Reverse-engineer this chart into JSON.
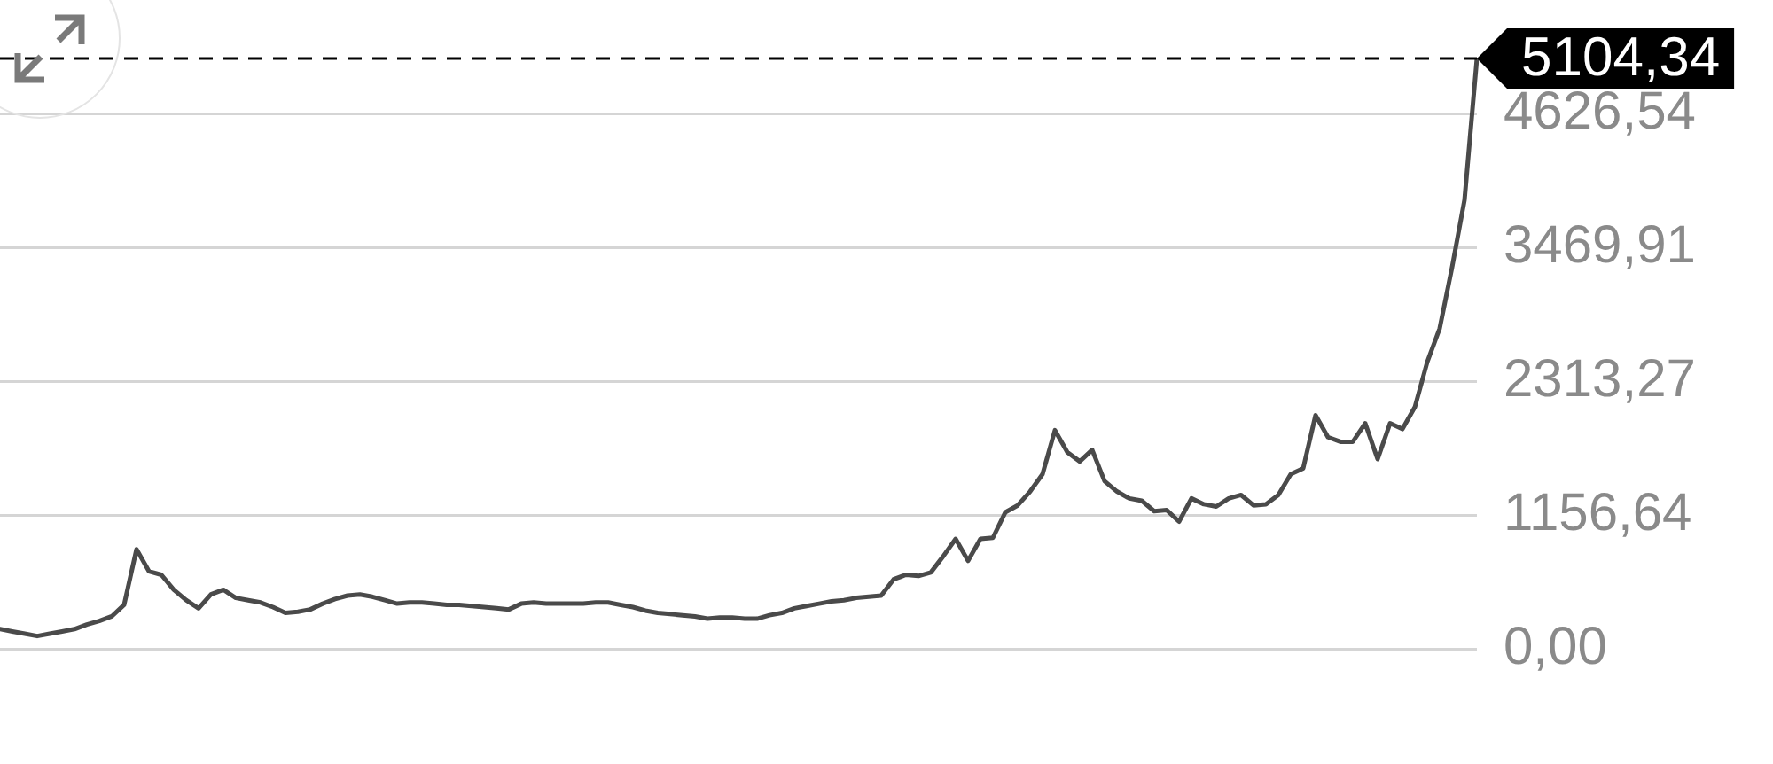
{
  "chart_data": {
    "type": "line",
    "categories": [
      null,
      null,
      null,
      null,
      null,
      null,
      null,
      null,
      null,
      null,
      null,
      null,
      null,
      null,
      null,
      null,
      null,
      null,
      null,
      null,
      null,
      null,
      null,
      null,
      null,
      null,
      null,
      null,
      null,
      null,
      null,
      null,
      null,
      null,
      null,
      null,
      null,
      null,
      null,
      null,
      null,
      null,
      null,
      null,
      null,
      null,
      null,
      null,
      null,
      null,
      null,
      null,
      null,
      null,
      null,
      null,
      null,
      null,
      null,
      null,
      null,
      null,
      null,
      null,
      null,
      null,
      null,
      null,
      null,
      null,
      null,
      null,
      null,
      null,
      null,
      null,
      null,
      null,
      null,
      null,
      null,
      null,
      null,
      null,
      null,
      null,
      null,
      null,
      null,
      null,
      null,
      null,
      null,
      null,
      null,
      null,
      null,
      null,
      null,
      null,
      null,
      null,
      null,
      null,
      null,
      null,
      null,
      null,
      null,
      null,
      null,
      null,
      null,
      null,
      null,
      null,
      null,
      null,
      null,
      null
    ],
    "values": [
      170,
      150,
      130,
      110,
      130,
      150,
      170,
      210,
      240,
      280,
      380,
      860,
      670,
      640,
      510,
      420,
      350,
      470,
      510,
      440,
      420,
      400,
      360,
      310,
      320,
      340,
      390,
      430,
      460,
      470,
      450,
      420,
      390,
      400,
      400,
      390,
      380,
      380,
      370,
      360,
      350,
      340,
      390,
      400,
      390,
      390,
      390,
      390,
      400,
      400,
      380,
      360,
      330,
      310,
      300,
      290,
      280,
      260,
      270,
      270,
      260,
      260,
      290,
      310,
      350,
      370,
      390,
      410,
      420,
      440,
      450,
      460,
      600,
      640,
      630,
      660,
      800,
      950,
      760,
      950,
      960,
      1180,
      1240,
      1360,
      1510,
      1890,
      1700,
      1620,
      1720,
      1450,
      1360,
      1300,
      1280,
      1190,
      1200,
      1100,
      1300,
      1250,
      1230,
      1300,
      1330,
      1240,
      1250,
      1330,
      1510,
      1560,
      2020,
      1830,
      1790,
      1790,
      1950,
      1640,
      1950,
      1900,
      2090,
      2480,
      2770,
      3300,
      3880,
      5104.34
    ],
    "color": "#4a4a4a",
    "ylim": [
      0,
      5104.34
    ],
    "yticks": [
      {
        "value": 0,
        "label": "0,00"
      },
      {
        "value": 1156.64,
        "label": "1156,64"
      },
      {
        "value": 2313.27,
        "label": "2313,27"
      },
      {
        "value": 3469.91,
        "label": "3469,91"
      },
      {
        "value": 4626.54,
        "label": "4626,54"
      }
    ],
    "ref_lines": [
      {
        "axis": "y",
        "value": 5104.34,
        "label": "5104,34",
        "color": "#000000",
        "line_style": "dashed"
      }
    ],
    "grid": "y",
    "tick_labels": "y",
    "marker": "none"
  }
}
